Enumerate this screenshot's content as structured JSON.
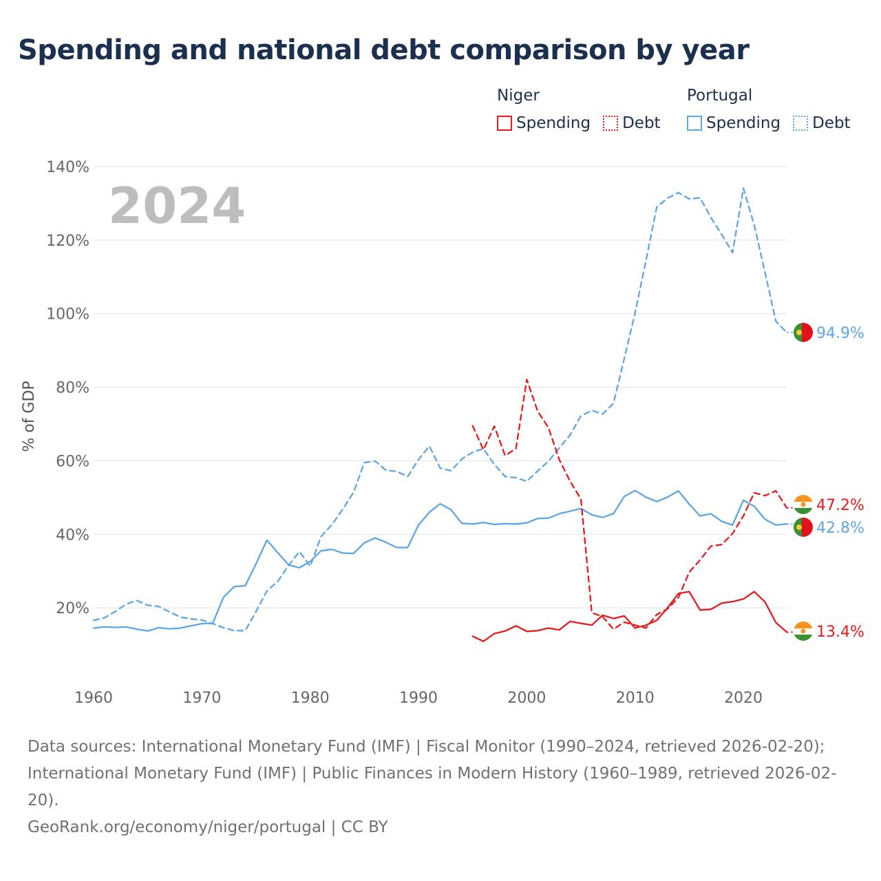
{
  "title": "Spending and national debt comparison by year",
  "legend": {
    "groups": [
      {
        "name": "Niger",
        "color": "#e41a1c",
        "spending_label": "Spending",
        "debt_label": "Debt"
      },
      {
        "name": "Portugal",
        "color": "#5da5e3",
        "spending_label": "Spending",
        "debt_label": "Debt"
      }
    ]
  },
  "year_watermark": "2024",
  "footer": {
    "sources": "Data sources: International Monetary Fund (IMF) | Fiscal Monitor (1990–2024, retrieved 2026-02-20); International Monetary Fund (IMF) | Public Finances in Modern History (1960–1989, retrieved 2026-02-20).",
    "credit": "GeoRank.org/economy/niger/portugal | CC BY"
  },
  "chart_data": {
    "type": "line",
    "title": "Spending and national debt comparison by year",
    "xlabel": "",
    "ylabel": "% of GDP",
    "xlim": [
      1960,
      2024
    ],
    "ylim": [
      0,
      140
    ],
    "x_ticks": [
      1960,
      1970,
      1980,
      1990,
      2000,
      2010,
      2020
    ],
    "y_ticks": [
      20,
      40,
      60,
      80,
      100,
      120,
      140
    ],
    "y_tick_labels": [
      "20%",
      "40%",
      "60%",
      "80%",
      "100%",
      "120%",
      "140%"
    ],
    "grid": true,
    "legend_position": "top-right",
    "series": [
      {
        "name": "Portugal Spending",
        "country": "Portugal",
        "measure": "Spending",
        "style": "solid",
        "color": "#5da5e3",
        "end_label": "42.8%",
        "x": [
          1960,
          1961,
          1962,
          1963,
          1964,
          1965,
          1966,
          1967,
          1968,
          1969,
          1970,
          1971,
          1972,
          1973,
          1974,
          1975,
          1976,
          1977,
          1978,
          1979,
          1980,
          1981,
          1982,
          1983,
          1984,
          1985,
          1986,
          1987,
          1988,
          1989,
          1990,
          1991,
          1992,
          1993,
          1994,
          1995,
          1996,
          1997,
          1998,
          1999,
          2000,
          2001,
          2002,
          2003,
          2004,
          2005,
          2006,
          2007,
          2008,
          2009,
          2010,
          2011,
          2012,
          2013,
          2014,
          2015,
          2016,
          2017,
          2018,
          2019,
          2020,
          2021,
          2022,
          2023,
          2024
        ],
        "values": [
          14.5,
          14.8,
          14.7,
          14.8,
          14.2,
          13.7,
          14.6,
          14.3,
          14.5,
          15.1,
          15.7,
          15.8,
          22.9,
          25.8,
          26.0,
          32.0,
          38.4,
          35.0,
          31.7,
          30.9,
          32.6,
          35.5,
          35.9,
          34.9,
          34.8,
          37.7,
          39.0,
          37.8,
          36.4,
          36.4,
          42.5,
          46.0,
          48.3,
          46.7,
          43.0,
          42.8,
          43.2,
          42.7,
          42.9,
          42.8,
          43.1,
          44.3,
          44.4,
          45.6,
          46.3,
          47.0,
          45.3,
          44.6,
          45.6,
          50.3,
          51.9,
          50.1,
          48.9,
          50.1,
          51.8,
          48.2,
          45.0,
          45.6,
          43.5,
          42.5,
          49.3,
          47.6,
          44.1,
          42.5,
          42.8
        ]
      },
      {
        "name": "Portugal Debt",
        "country": "Portugal",
        "measure": "Debt",
        "style": "dashed",
        "color": "#5da5e3",
        "end_label": "94.9%",
        "x": [
          1960,
          1961,
          1962,
          1963,
          1964,
          1965,
          1966,
          1967,
          1968,
          1969,
          1970,
          1971,
          1972,
          1973,
          1974,
          1975,
          1976,
          1977,
          1978,
          1979,
          1980,
          1981,
          1982,
          1983,
          1984,
          1985,
          1986,
          1987,
          1988,
          1989,
          1990,
          1991,
          1992,
          1993,
          1994,
          1995,
          1996,
          1997,
          1998,
          1999,
          2000,
          2001,
          2002,
          2003,
          2004,
          2005,
          2006,
          2007,
          2008,
          2009,
          2010,
          2011,
          2012,
          2013,
          2014,
          2015,
          2016,
          2017,
          2018,
          2019,
          2020,
          2021,
          2022,
          2023,
          2024
        ],
        "values": [
          16.6,
          17.3,
          19.0,
          21.0,
          22.0,
          20.7,
          20.4,
          18.9,
          17.5,
          17.0,
          16.7,
          15.7,
          14.6,
          13.8,
          13.8,
          19.0,
          24.6,
          27.2,
          31.5,
          35.3,
          31.3,
          39.4,
          42.6,
          46.8,
          51.4,
          59.5,
          59.9,
          57.4,
          57.1,
          55.7,
          60.3,
          64.0,
          58.0,
          57.3,
          60.5,
          62.3,
          63.3,
          59.0,
          55.7,
          55.4,
          54.4,
          57.2,
          59.9,
          63.5,
          67.0,
          72.2,
          73.7,
          72.7,
          75.6,
          87.8,
          100.2,
          114.4,
          129.0,
          131.4,
          132.9,
          131.2,
          131.5,
          126.1,
          121.5,
          116.6,
          134.1,
          124.1,
          111.2,
          97.9,
          94.9
        ]
      },
      {
        "name": "Niger Spending",
        "country": "Niger",
        "measure": "Spending",
        "style": "solid",
        "color": "#e41a1c",
        "end_label": "13.4%",
        "x": [
          1995,
          1996,
          1997,
          1998,
          1999,
          2000,
          2001,
          2002,
          2003,
          2004,
          2005,
          2006,
          2007,
          2008,
          2009,
          2010,
          2011,
          2012,
          2013,
          2014,
          2015,
          2016,
          2017,
          2018,
          2019,
          2020,
          2021,
          2022,
          2023,
          2024
        ],
        "values": [
          12.3,
          10.9,
          13.0,
          13.7,
          15.1,
          13.6,
          13.8,
          14.5,
          14.0,
          16.3,
          15.8,
          15.3,
          18.0,
          17.1,
          17.8,
          14.5,
          15.3,
          16.6,
          20.0,
          23.9,
          24.4,
          19.4,
          19.6,
          21.3,
          21.7,
          22.4,
          24.4,
          21.6,
          16.0,
          13.4
        ]
      },
      {
        "name": "Niger Debt",
        "country": "Niger",
        "measure": "Debt",
        "style": "dashed",
        "color": "#e41a1c",
        "end_label": "47.2%",
        "x": [
          1995,
          1996,
          1997,
          1998,
          1999,
          2000,
          2001,
          2002,
          2003,
          2004,
          2005,
          2006,
          2007,
          2008,
          2009,
          2010,
          2011,
          2012,
          2013,
          2014,
          2015,
          2016,
          2017,
          2018,
          2019,
          2020,
          2021,
          2022,
          2023,
          2024
        ],
        "values": [
          69.5,
          63.0,
          69.4,
          61.4,
          63.3,
          82.1,
          73.5,
          69.0,
          60.3,
          54.4,
          49.6,
          18.7,
          17.6,
          14.2,
          16.1,
          15.3,
          14.5,
          18.2,
          19.7,
          22.8,
          29.7,
          33.0,
          36.8,
          37.2,
          40.2,
          45.0,
          51.3,
          50.5,
          51.8,
          47.2
        ]
      }
    ]
  }
}
